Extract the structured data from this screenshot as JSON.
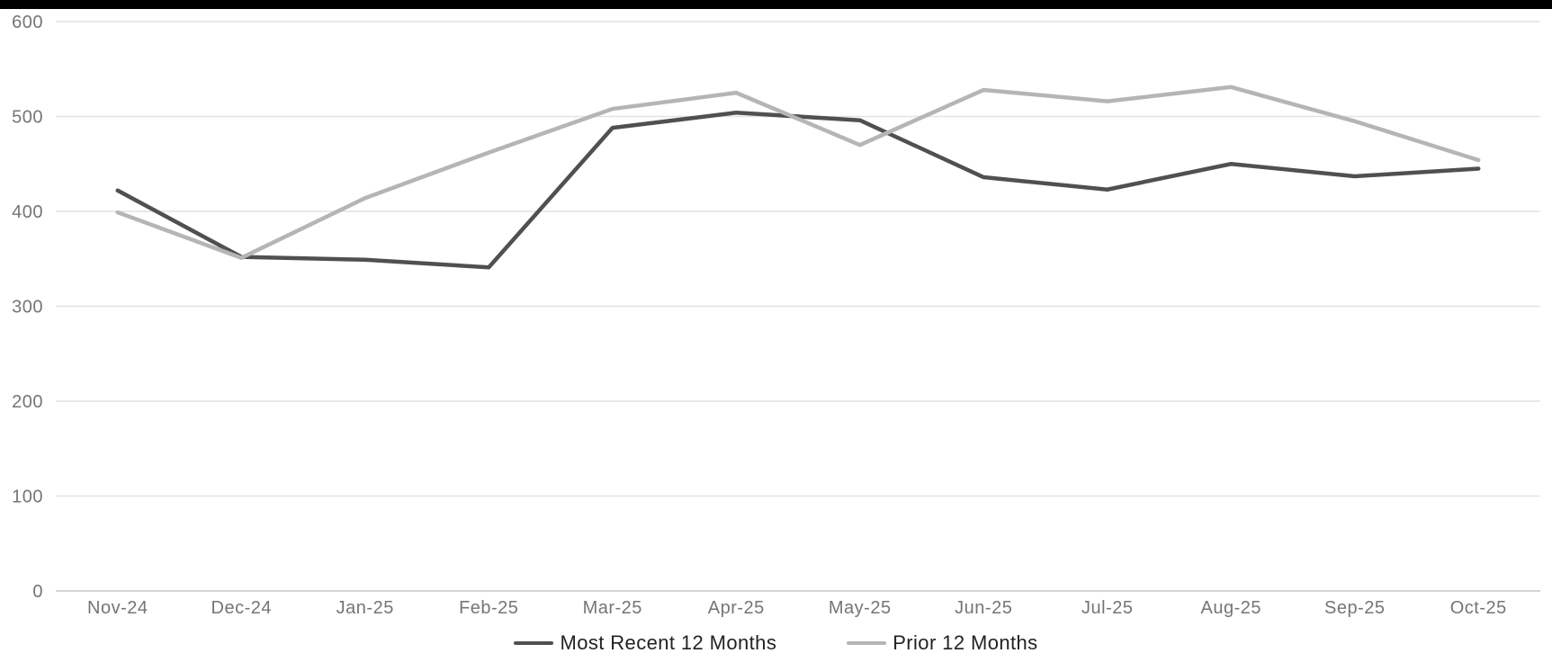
{
  "chart_data": {
    "type": "line",
    "title": "",
    "xlabel": "",
    "ylabel": "",
    "categories": [
      "Nov-24",
      "Dec-24",
      "Jan-25",
      "Feb-25",
      "Mar-25",
      "Apr-25",
      "May-25",
      "Jun-25",
      "Jul-25",
      "Aug-25",
      "Sep-25",
      "Oct-25"
    ],
    "series": [
      {
        "name": "Most Recent 12 Months",
        "color": "#505050",
        "values": [
          422,
          352,
          349,
          341,
          488,
          504,
          496,
          436,
          423,
          450,
          437,
          445
        ]
      },
      {
        "name": "Prior 12 Months",
        "color": "#b5b5b5",
        "values": [
          399,
          351,
          414,
          462,
          508,
          525,
          470,
          528,
          516,
          531,
          495,
          454
        ]
      }
    ],
    "ylim": [
      0,
      600
    ],
    "yticks": [
      0,
      100,
      200,
      300,
      400,
      500,
      600
    ],
    "grid": true,
    "legend_position": "bottom"
  },
  "colors": {
    "top_bar": "#000000",
    "gridline": "#e2e2e2",
    "zero_axis_line": "#d4d4d4",
    "tick_label": "#757575",
    "legend_text": "#222222",
    "background": "#ffffff"
  }
}
